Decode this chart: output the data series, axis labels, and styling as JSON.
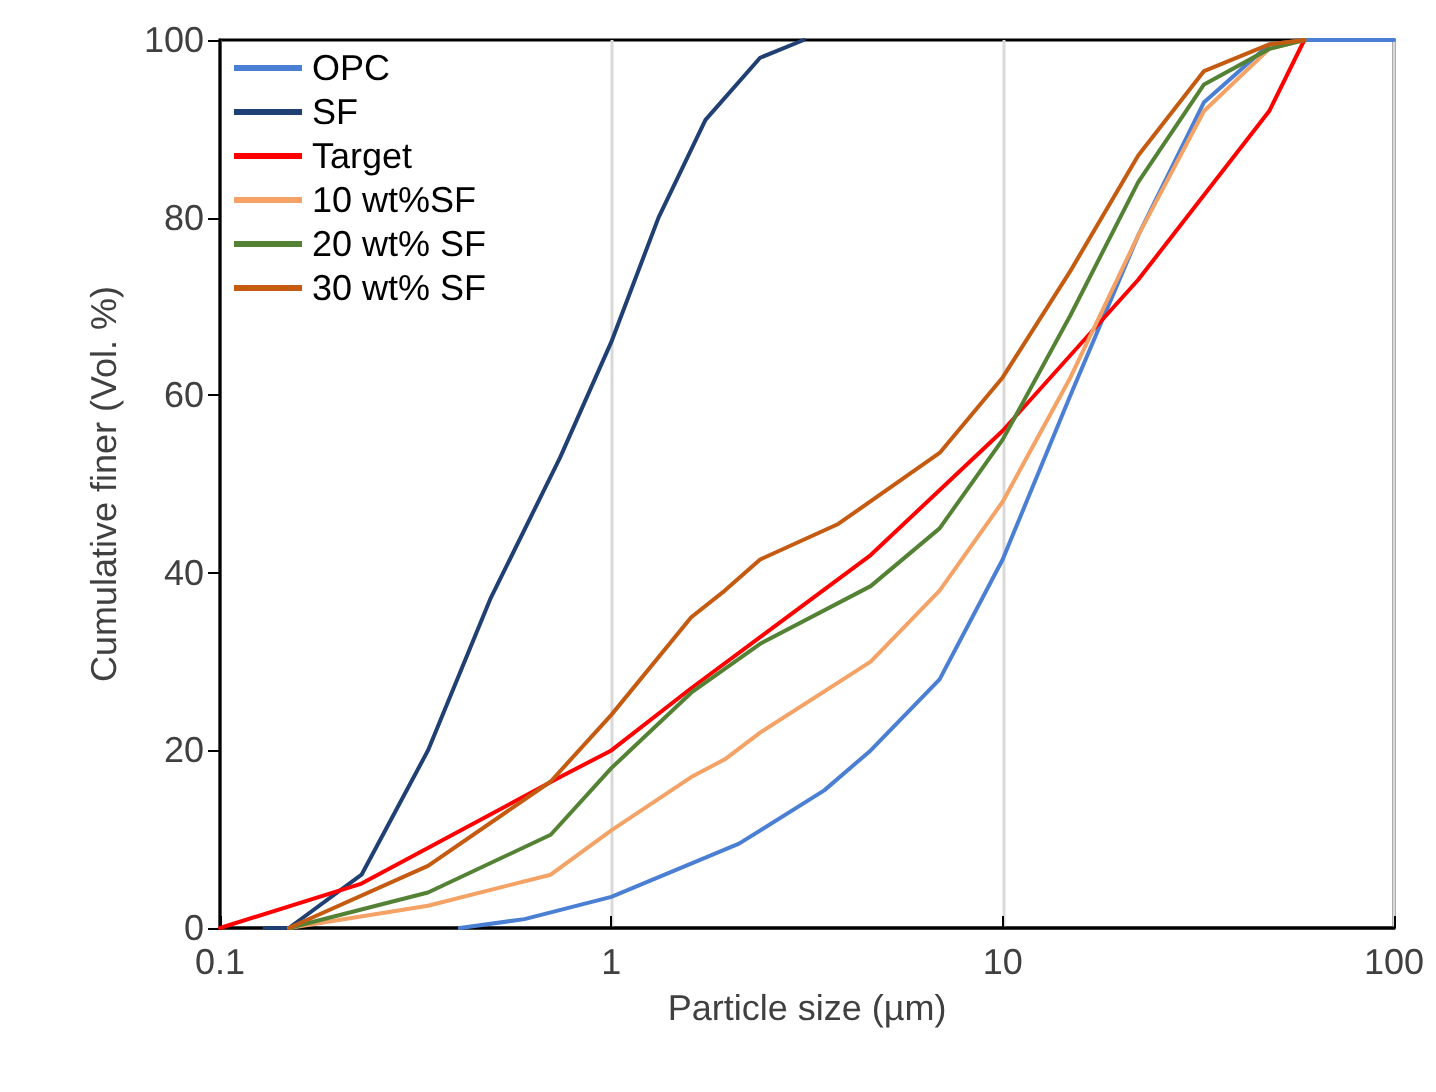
{
  "chart_data": {
    "type": "line",
    "xlabel": "Particle size (µm)",
    "ylabel": "Cumulative finer (Vol. %)",
    "log": "x",
    "xlim": [
      0.1,
      100
    ],
    "xticks": [
      0.1,
      1,
      10,
      100
    ],
    "ylim": [
      0,
      100
    ],
    "yticks": [
      0,
      20,
      40,
      60,
      80,
      100
    ],
    "grid": "x",
    "legend": "top left",
    "marker": "none",
    "line_style": "solid",
    "series": [
      {
        "name": "OPC",
        "color": "#4a7fd4",
        "x": [
          0.41,
          0.6,
          1,
          2.12,
          3.5,
          4.6,
          6.9,
          10,
          14.9,
          22.2,
          32.7,
          48,
          60,
          100
        ],
        "values": [
          0,
          1,
          3.5,
          9.5,
          15.5,
          20,
          28,
          41.5,
          60,
          78,
          93,
          99.5,
          100,
          100
        ]
      },
      {
        "name": "SF",
        "color": "#203f73",
        "x": [
          0.13,
          0.15,
          0.23,
          0.34,
          0.49,
          0.74,
          1,
          1.32,
          1.74,
          2.4,
          3.1
        ],
        "values": [
          0,
          0,
          6,
          20,
          37,
          53,
          66,
          80,
          91,
          98,
          100
        ]
      },
      {
        "name": "Target",
        "color": "#ff0000",
        "x": [
          0.1,
          0.23,
          0.74,
          1,
          1.6,
          4.6,
          10,
          22.2,
          48,
          59
        ],
        "values": [
          0,
          5,
          17,
          20,
          27,
          42,
          56,
          73,
          92,
          100
        ]
      },
      {
        "name": "10 wt%SF",
        "color": "#f4a266",
        "x": [
          0.15,
          0.34,
          0.7,
          1,
          1.6,
          1.95,
          2.4,
          4.6,
          6.9,
          10,
          14.9,
          22.2,
          32.7,
          48,
          59
        ],
        "values": [
          0,
          2.5,
          6,
          11,
          17,
          19,
          22,
          30,
          38,
          48,
          62,
          78,
          92,
          99,
          100
        ]
      },
      {
        "name": "20 wt% SF",
        "color": "#548235",
        "x": [
          0.15,
          0.34,
          0.7,
          1,
          1.6,
          2.4,
          4.6,
          6.9,
          10,
          14.9,
          22.2,
          32.7,
          48,
          59
        ],
        "values": [
          0,
          4,
          10.5,
          18,
          26.5,
          32,
          38.5,
          45,
          55,
          69,
          84,
          95,
          99,
          100
        ]
      },
      {
        "name": "30 wt% SF",
        "color": "#c55a11",
        "x": [
          0.15,
          0.34,
          0.7,
          1,
          1.6,
          1.95,
          2.4,
          3.8,
          6.9,
          10,
          14.9,
          22.2,
          32.7,
          48,
          59
        ],
        "values": [
          0,
          7,
          16.5,
          24,
          35,
          38,
          41.5,
          45.5,
          53.5,
          62,
          74,
          87,
          96.5,
          99.5,
          100
        ]
      }
    ]
  }
}
